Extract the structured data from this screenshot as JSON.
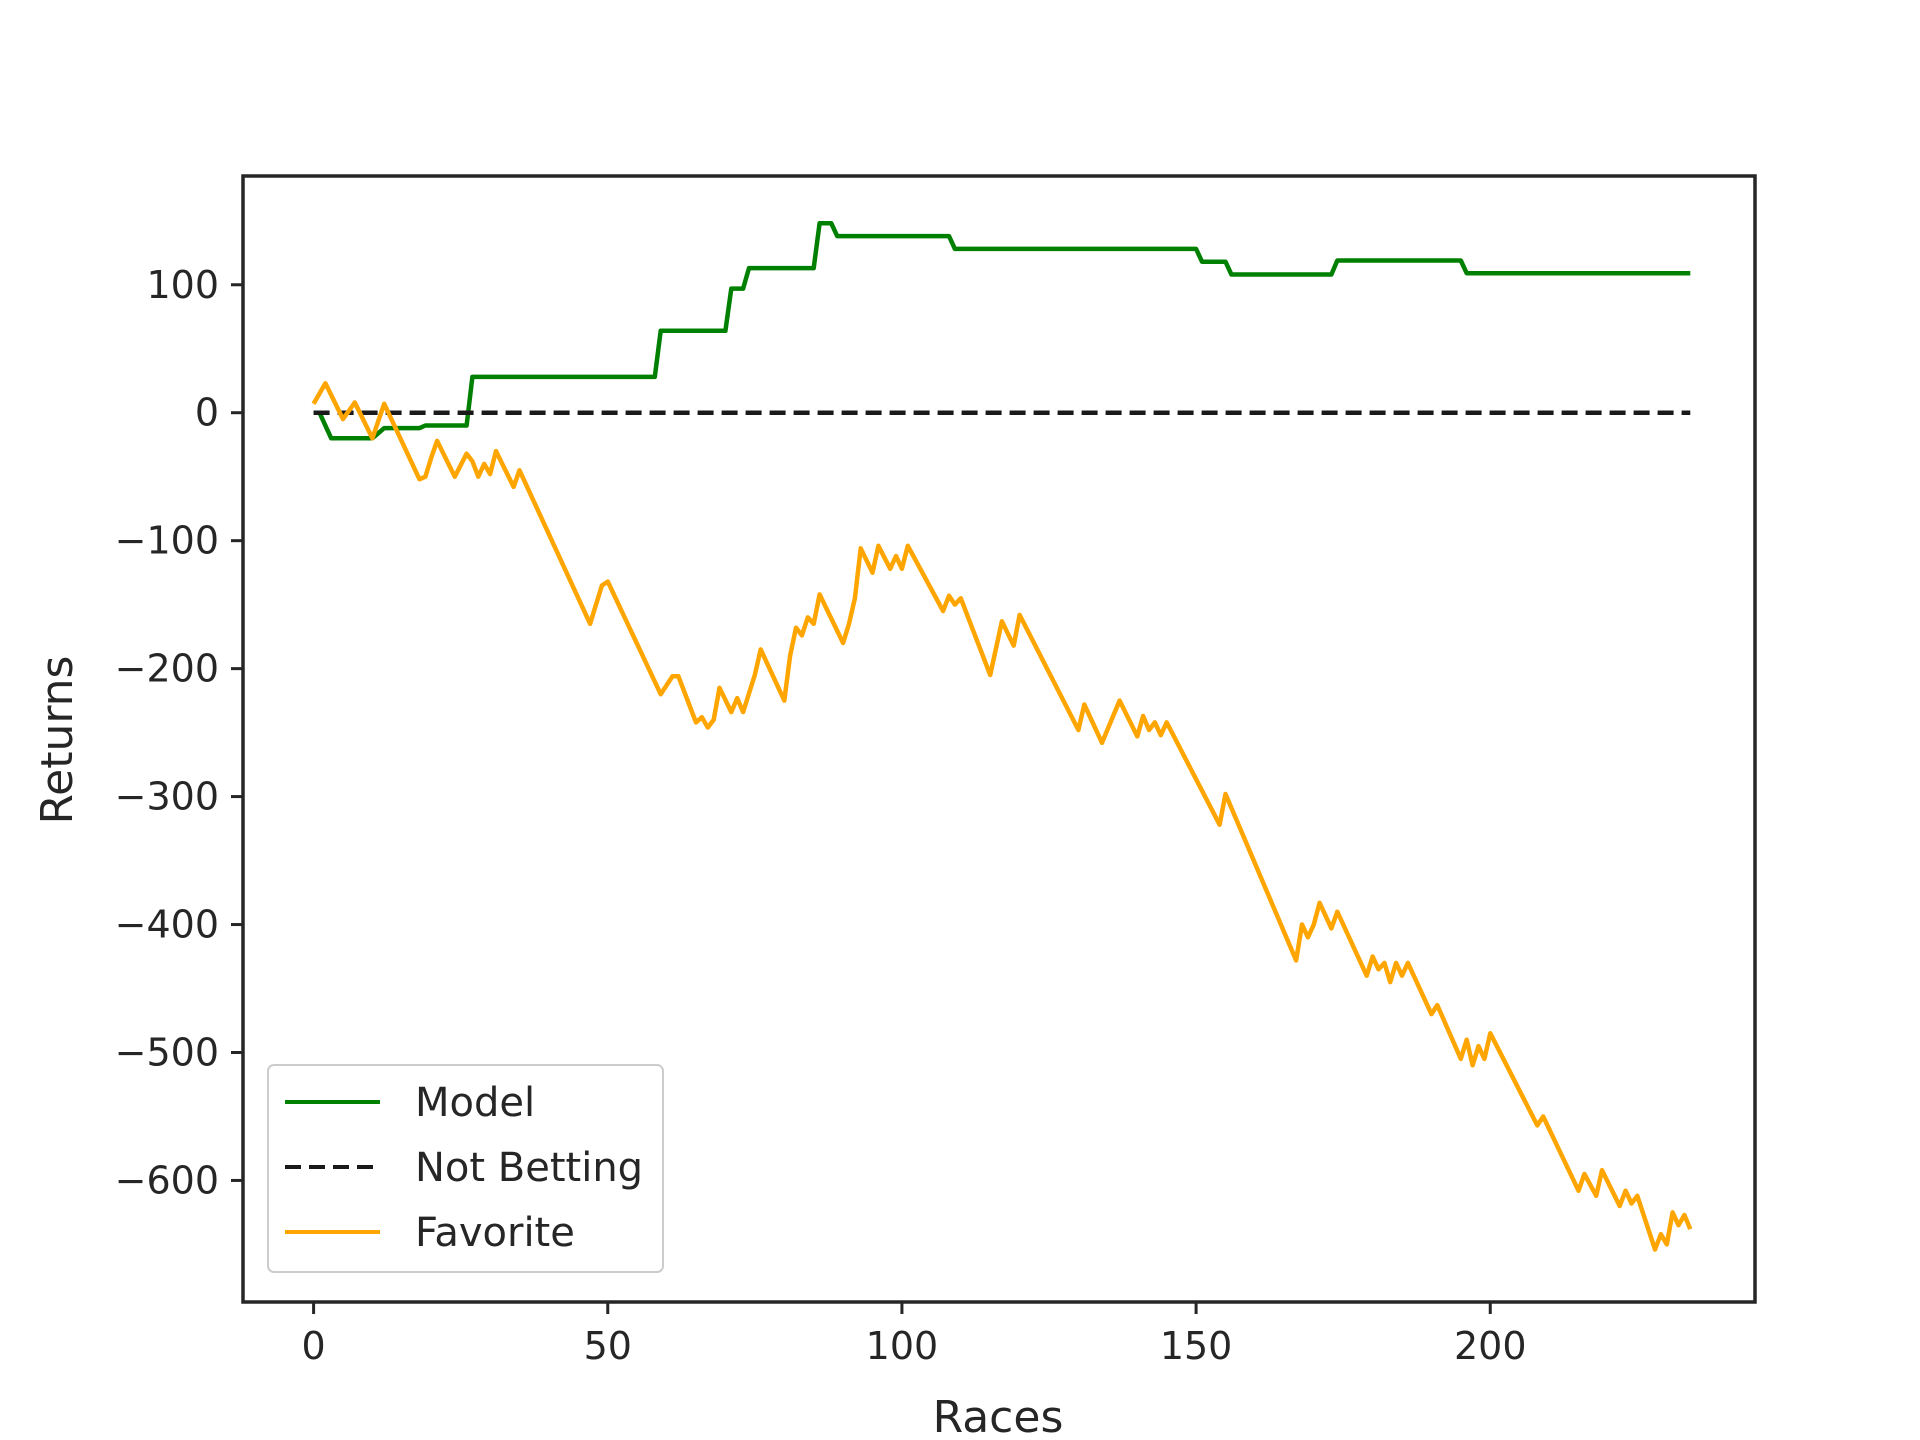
{
  "chart_data": {
    "type": "line",
    "title": "",
    "xlabel": "Races",
    "ylabel": "Returns",
    "xlim": [
      -12,
      245
    ],
    "ylim": [
      -695,
      185
    ],
    "xticks": [
      0,
      50,
      100,
      150,
      200
    ],
    "yticks": [
      100,
      0,
      -100,
      -200,
      -300,
      -400,
      -500,
      -600
    ],
    "ytick_labels": [
      "100",
      "0",
      "−100",
      "−200",
      "−300",
      "−400",
      "−500",
      "−600"
    ],
    "grid": false,
    "legend_placement": "lower-left",
    "series": [
      {
        "name": "Model",
        "color": "#008000",
        "style": "solid",
        "points": [
          [
            0,
            0
          ],
          [
            1,
            0
          ],
          [
            3,
            -20
          ],
          [
            10,
            -20
          ],
          [
            12,
            -12
          ],
          [
            18,
            -12
          ],
          [
            19,
            -10
          ],
          [
            26,
            -10
          ],
          [
            27,
            28
          ],
          [
            58,
            28
          ],
          [
            59,
            64
          ],
          [
            70,
            64
          ],
          [
            71,
            97
          ],
          [
            73,
            97
          ],
          [
            74,
            113
          ],
          [
            85,
            113
          ],
          [
            86,
            148
          ],
          [
            88,
            148
          ],
          [
            89,
            138
          ],
          [
            108,
            138
          ],
          [
            109,
            128
          ],
          [
            150,
            128
          ],
          [
            151,
            118
          ],
          [
            155,
            118
          ],
          [
            156,
            108
          ],
          [
            173,
            108
          ],
          [
            174,
            119
          ],
          [
            195,
            119
          ],
          [
            196,
            109
          ],
          [
            234,
            109
          ]
        ]
      },
      {
        "name": "Not Betting",
        "color": "#1a1a1a",
        "style": "dashed",
        "points": [
          [
            0,
            0
          ],
          [
            234,
            0
          ]
        ]
      },
      {
        "name": "Favorite",
        "color": "#FFA500",
        "style": "solid",
        "points": [
          [
            0,
            7
          ],
          [
            2,
            23
          ],
          [
            5,
            -5
          ],
          [
            7,
            8
          ],
          [
            10,
            -20
          ],
          [
            12,
            7
          ],
          [
            18,
            -52
          ],
          [
            19,
            -50
          ],
          [
            20,
            -35
          ],
          [
            21,
            -22
          ],
          [
            24,
            -50
          ],
          [
            26,
            -32
          ],
          [
            27,
            -38
          ],
          [
            28,
            -50
          ],
          [
            29,
            -40
          ],
          [
            30,
            -48
          ],
          [
            31,
            -30
          ],
          [
            34,
            -58
          ],
          [
            35,
            -45
          ],
          [
            47,
            -165
          ],
          [
            49,
            -135
          ],
          [
            50,
            -132
          ],
          [
            59,
            -220
          ],
          [
            61,
            -206
          ],
          [
            62,
            -206
          ],
          [
            65,
            -242
          ],
          [
            66,
            -238
          ],
          [
            67,
            -246
          ],
          [
            68,
            -240
          ],
          [
            69,
            -215
          ],
          [
            71,
            -234
          ],
          [
            72,
            -223
          ],
          [
            73,
            -234
          ],
          [
            75,
            -205
          ],
          [
            76,
            -185
          ],
          [
            80,
            -225
          ],
          [
            81,
            -190
          ],
          [
            82,
            -168
          ],
          [
            83,
            -174
          ],
          [
            84,
            -160
          ],
          [
            85,
            -165
          ],
          [
            86,
            -142
          ],
          [
            90,
            -180
          ],
          [
            91,
            -165
          ],
          [
            92,
            -145
          ],
          [
            93,
            -106
          ],
          [
            95,
            -125
          ],
          [
            96,
            -104
          ],
          [
            98,
            -122
          ],
          [
            99,
            -112
          ],
          [
            100,
            -122
          ],
          [
            101,
            -104
          ],
          [
            107,
            -155
          ],
          [
            108,
            -143
          ],
          [
            109,
            -150
          ],
          [
            110,
            -145
          ],
          [
            115,
            -205
          ],
          [
            117,
            -163
          ],
          [
            119,
            -182
          ],
          [
            120,
            -158
          ],
          [
            130,
            -248
          ],
          [
            131,
            -228
          ],
          [
            134,
            -258
          ],
          [
            137,
            -225
          ],
          [
            140,
            -253
          ],
          [
            141,
            -237
          ],
          [
            142,
            -248
          ],
          [
            143,
            -242
          ],
          [
            144,
            -252
          ],
          [
            145,
            -242
          ],
          [
            154,
            -322
          ],
          [
            155,
            -298
          ],
          [
            167,
            -428
          ],
          [
            168,
            -400
          ],
          [
            169,
            -410
          ],
          [
            170,
            -400
          ],
          [
            171,
            -383
          ],
          [
            173,
            -403
          ],
          [
            174,
            -390
          ],
          [
            179,
            -440
          ],
          [
            180,
            -425
          ],
          [
            181,
            -435
          ],
          [
            182,
            -430
          ],
          [
            183,
            -445
          ],
          [
            184,
            -430
          ],
          [
            185,
            -440
          ],
          [
            186,
            -430
          ],
          [
            190,
            -470
          ],
          [
            191,
            -463
          ],
          [
            195,
            -505
          ],
          [
            196,
            -490
          ],
          [
            197,
            -510
          ],
          [
            198,
            -495
          ],
          [
            199,
            -505
          ],
          [
            200,
            -485
          ],
          [
            208,
            -557
          ],
          [
            209,
            -550
          ],
          [
            215,
            -608
          ],
          [
            216,
            -595
          ],
          [
            218,
            -612
          ],
          [
            219,
            -592
          ],
          [
            222,
            -620
          ],
          [
            223,
            -608
          ],
          [
            224,
            -618
          ],
          [
            225,
            -612
          ],
          [
            228,
            -654
          ],
          [
            229,
            -642
          ],
          [
            230,
            -650
          ],
          [
            231,
            -625
          ],
          [
            232,
            -635
          ],
          [
            233,
            -627
          ],
          [
            234,
            -638
          ]
        ]
      }
    ]
  }
}
